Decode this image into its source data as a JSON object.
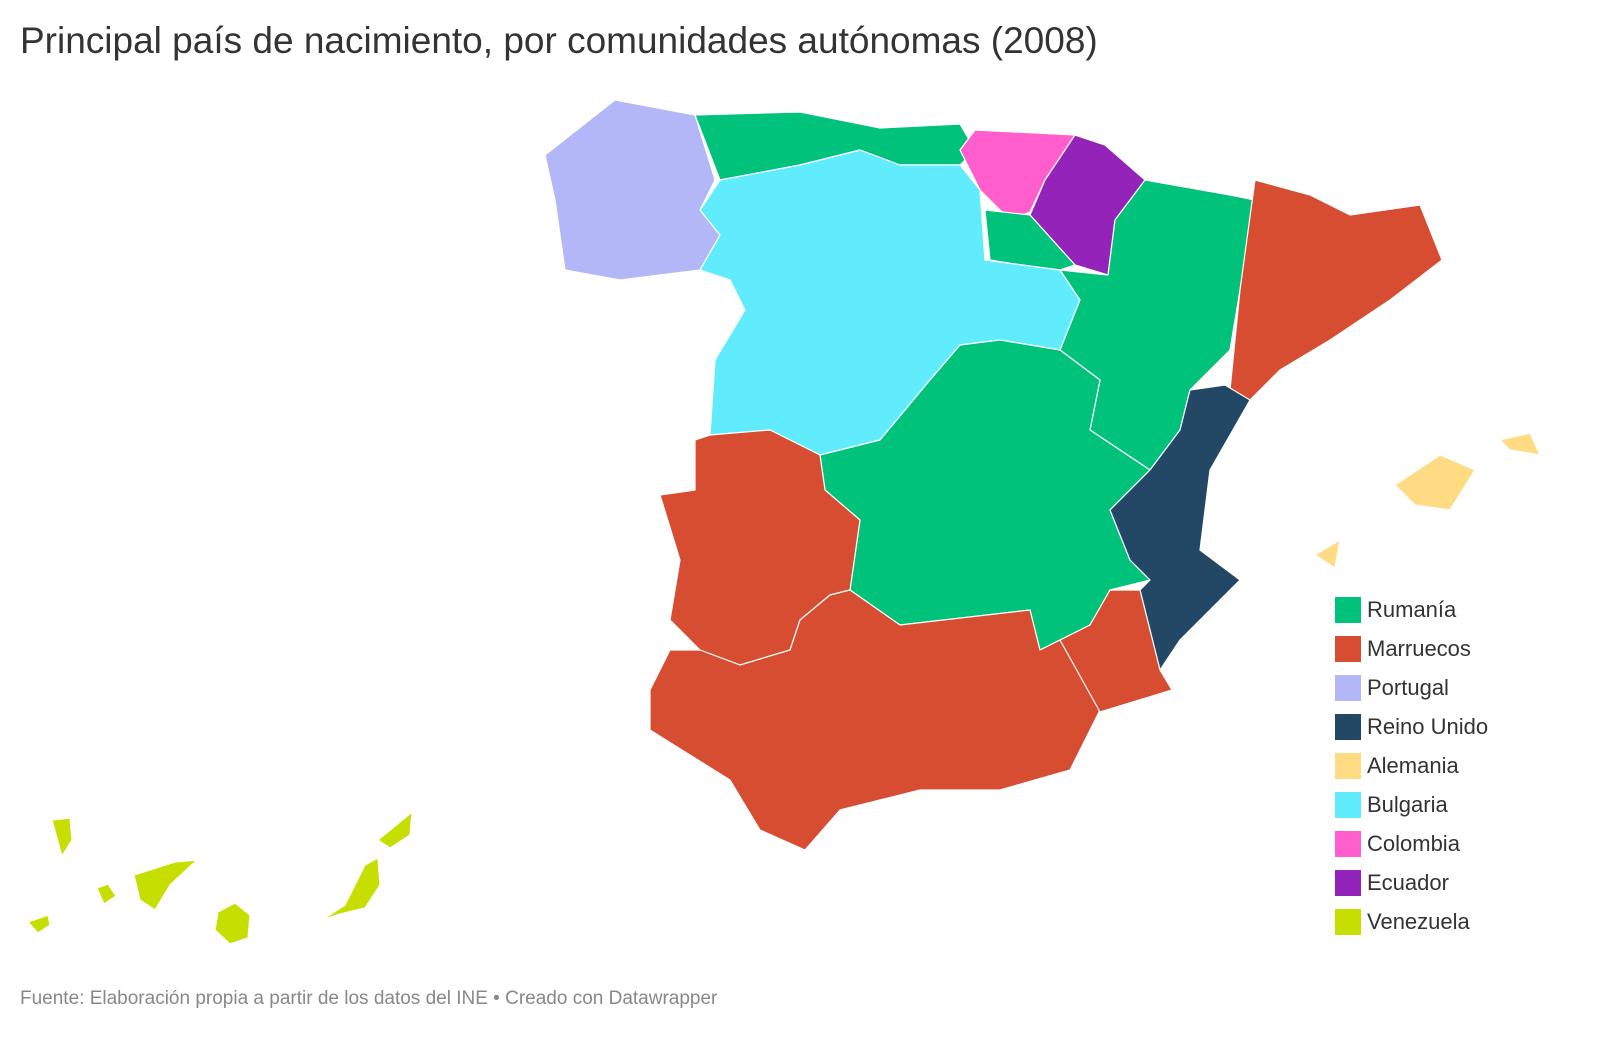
{
  "header": {
    "title": "Principal país de nacimiento, por comunidades autónomas (2008)"
  },
  "legend": [
    {
      "label": "Rumanía",
      "color": "#00c27a"
    },
    {
      "label": "Marruecos",
      "color": "#d64d32"
    },
    {
      "label": "Portugal",
      "color": "#b3b6f7"
    },
    {
      "label": "Reino Unido",
      "color": "#224866"
    },
    {
      "label": "Alemania",
      "color": "#ffdc84"
    },
    {
      "label": "Bulgaria",
      "color": "#61ecfd"
    },
    {
      "label": "Colombia",
      "color": "#ff5ecc"
    },
    {
      "label": "Ecuador",
      "color": "#9424b9"
    },
    {
      "label": "Venezuela",
      "color": "#c6df00"
    }
  ],
  "footer": {
    "source": "Fuente: Elaboración propia a partir de los datos del INE • Creado con Datawrapper"
  }
}
